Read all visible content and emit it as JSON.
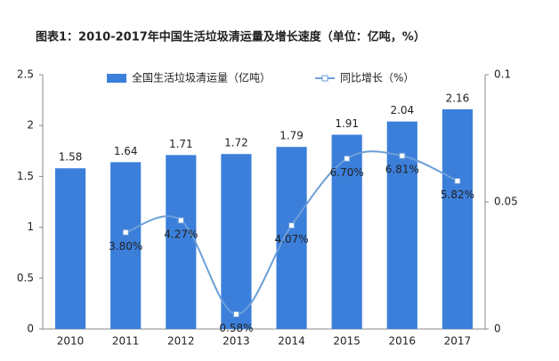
{
  "chart_data": {
    "type": "bar",
    "title": "图表1：2010-2017年中国生活垃圾清运量及增长速度（单位：亿吨，%）",
    "categories": [
      "2010",
      "2011",
      "2012",
      "2013",
      "2014",
      "2015",
      "2016",
      "2017"
    ],
    "series": [
      {
        "name": "全国生活垃圾清运量（亿吨）",
        "type": "bar",
        "color": "#3b7fdb",
        "values": [
          1.58,
          1.64,
          1.71,
          1.72,
          1.79,
          1.91,
          2.04,
          2.16
        ]
      },
      {
        "name": "同比增长（%）",
        "type": "line",
        "axis": "y2",
        "color": "#6c9fd8",
        "values": [
          null,
          0.038,
          0.0427,
          0.0058,
          0.0407,
          0.067,
          0.0681,
          0.0582
        ],
        "value_labels": [
          null,
          "3.80%",
          "4.27%",
          "0.58%",
          "4.07%",
          "6.70%",
          "6.81%",
          "5.82%"
        ]
      }
    ],
    "ylim": [
      0,
      2.5
    ],
    "yticks": [
      0,
      0.5,
      1,
      1.5,
      2,
      2.5
    ],
    "y2lim": [
      0,
      0.1
    ],
    "y2ticks": [
      0,
      0.05,
      0.1
    ],
    "legend": "top"
  }
}
